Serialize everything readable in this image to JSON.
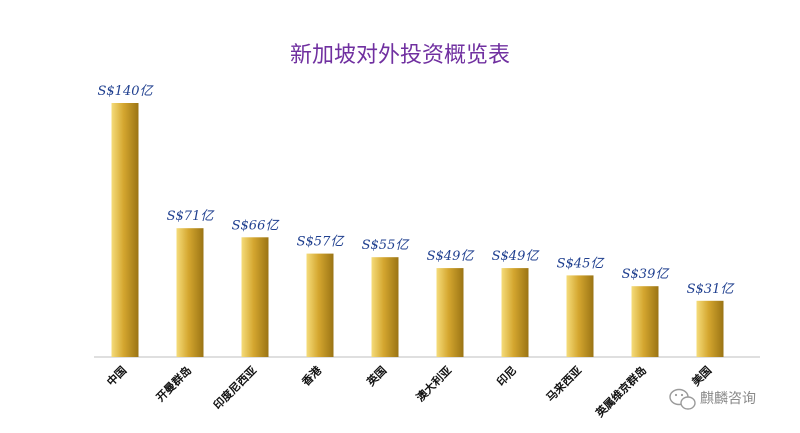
{
  "chart_data": {
    "type": "bar",
    "title": "新加坡对外投资概览表",
    "categories": [
      "中国",
      "开曼群岛",
      "印度尼西亚",
      "香港",
      "英国",
      "澳大利亚",
      "印尼",
      "马来西亚",
      "英属维京群岛",
      "美国"
    ],
    "values": [
      140,
      71,
      66,
      57,
      55,
      49,
      49,
      45,
      39,
      31
    ],
    "value_labels": [
      "S$140亿",
      "S$71亿",
      "S$66亿",
      "S$57亿",
      "S$55亿",
      "S$49亿",
      "S$49亿",
      "S$45亿",
      "S$39亿",
      "S$31亿"
    ],
    "xlabel": "",
    "ylabel": "",
    "ylim": [
      0,
      140
    ],
    "grid": false,
    "legend": "none",
    "colors": {
      "bar_light": "#f5dc7a",
      "bar_mid": "#d4a62f",
      "bar_dark": "#9a7414",
      "title": "#7030a0",
      "value_label": "#1f3f8f",
      "axis": "#bfbfbf"
    }
  },
  "watermark": {
    "text": "麒麟咨询",
    "icon": "wechat-icon"
  }
}
